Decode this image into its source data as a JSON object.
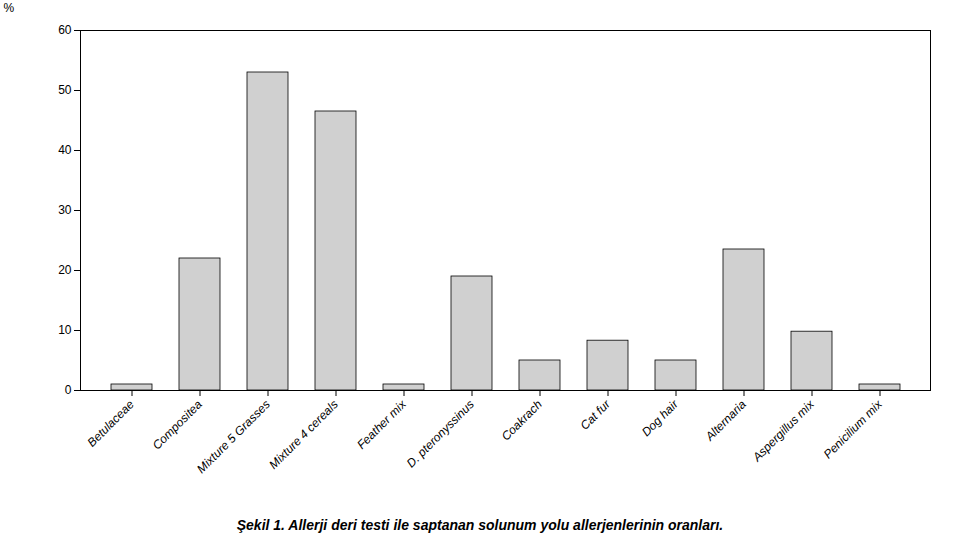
{
  "chart_data": {
    "type": "bar",
    "caption": "Şekil 1. Allerji deri testi ile saptanan solunum yolu allerjenlerinin oranları.",
    "ylabel": "%",
    "categories": [
      "Betulaceae",
      "Compositea",
      "Mixture 5 Grasses",
      "Mixture 4 cereals",
      "Feather mix",
      "D. pteronyssinus",
      "Coakrach",
      "Cat fur",
      "Dog hair",
      "Alternaria",
      "Aspergillus mix",
      "Penicilium mix"
    ],
    "values": [
      1.0,
      22.0,
      53.0,
      46.5,
      1.0,
      19.0,
      5.0,
      8.3,
      5.0,
      23.5,
      9.8,
      1.0
    ],
    "color": "#d0d0d0",
    "ylim": [
      0,
      60
    ],
    "yticks": [
      0,
      10,
      20,
      30,
      40,
      50,
      60
    ],
    "grid": false
  }
}
